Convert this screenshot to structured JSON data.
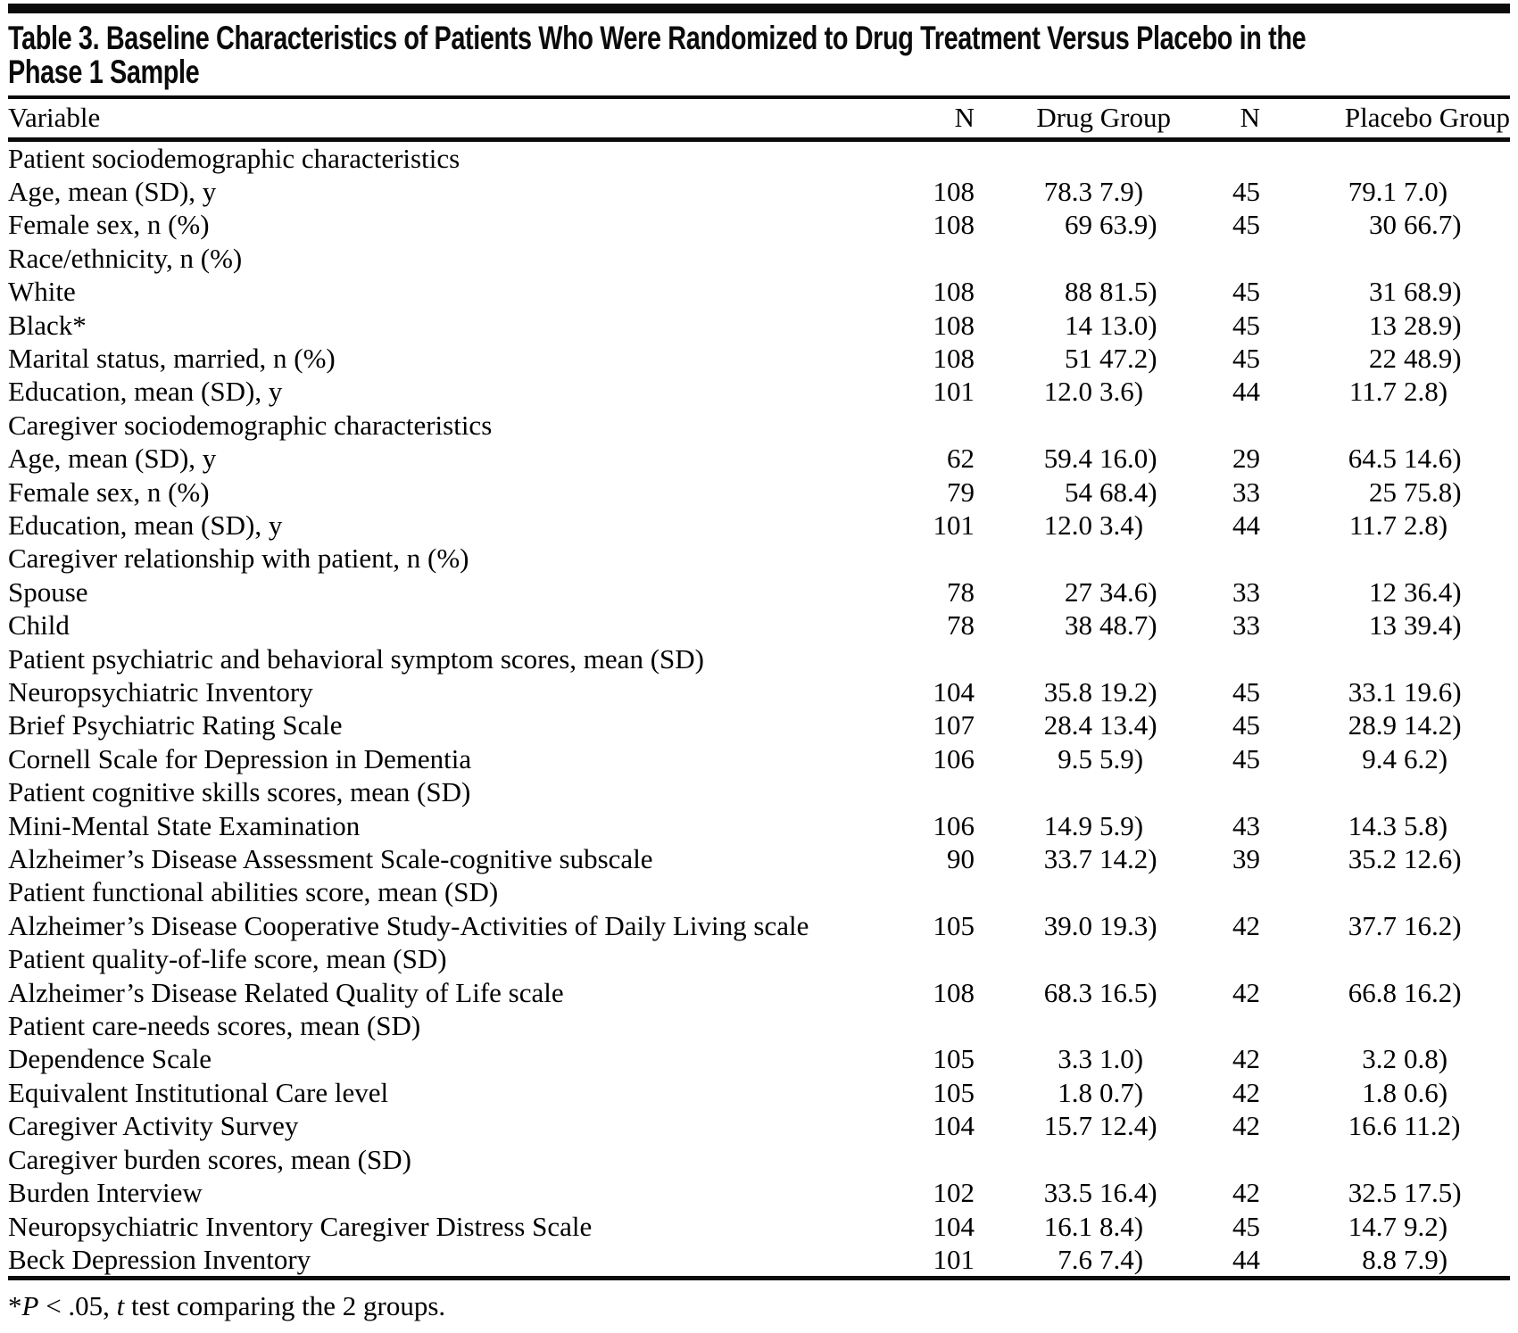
{
  "table": {
    "title_line1": "Table 3. Baseline Characteristics of Patients Who Were Randomized to Drug Treatment Versus Placebo in the",
    "title_line2": "Phase 1 Sample",
    "columns": [
      "Variable",
      "N",
      "Drug Group",
      "N",
      "Placebo Group"
    ],
    "rows": [
      {
        "label": "Patient sociodemographic characteristics",
        "indent": 0,
        "n1": "",
        "drug": "",
        "n2": "",
        "placebo": ""
      },
      {
        "label": "Age, mean (SD), y",
        "indent": 1,
        "n1": "108",
        "drug": "78.3 (7.9)",
        "n2": "45",
        "placebo": "79.1 (7.0)"
      },
      {
        "label": "Female sex, n (%)",
        "indent": 1,
        "n1": "108",
        "drug": "69 (63.9)",
        "n2": "45",
        "placebo": "30 (66.7)"
      },
      {
        "label": "Race/ethnicity, n (%)",
        "indent": 1,
        "n1": "",
        "drug": "",
        "n2": "",
        "placebo": ""
      },
      {
        "label": "White",
        "indent": 2,
        "n1": "108",
        "drug": "88 (81.5)",
        "n2": "45",
        "placebo": "31 (68.9)"
      },
      {
        "label": "Black*",
        "indent": 2,
        "n1": "108",
        "drug": "14 (13.0)",
        "n2": "45",
        "placebo": "13 (28.9)"
      },
      {
        "label": "Marital status, married, n (%)",
        "indent": 1,
        "n1": "108",
        "drug": "51 (47.2)",
        "n2": "45",
        "placebo": "22 (48.9)"
      },
      {
        "label": "Education, mean (SD), y",
        "indent": 1,
        "n1": "101",
        "drug": "12.0 (3.6)",
        "n2": "44",
        "placebo": "11.7 (2.8)"
      },
      {
        "label": "Caregiver sociodemographic characteristics",
        "indent": 0,
        "n1": "",
        "drug": "",
        "n2": "",
        "placebo": ""
      },
      {
        "label": "Age, mean (SD), y",
        "indent": 1,
        "n1": "62",
        "drug": "59.4 (16.0)",
        "n2": "29",
        "placebo": "64.5 (14.6)"
      },
      {
        "label": "Female sex, n (%)",
        "indent": 1,
        "n1": "79",
        "drug": "54 (68.4)",
        "n2": "33",
        "placebo": "25 (75.8)"
      },
      {
        "label": "Education, mean (SD), y",
        "indent": 1,
        "n1": "101",
        "drug": "12.0 (3.4)",
        "n2": "44",
        "placebo": "11.7 (2.8)"
      },
      {
        "label": "Caregiver relationship with patient, n (%)",
        "indent": 0,
        "n1": "",
        "drug": "",
        "n2": "",
        "placebo": ""
      },
      {
        "label": "Spouse",
        "indent": 1,
        "n1": "78",
        "drug": "27 (34.6)",
        "n2": "33",
        "placebo": "12 (36.4)"
      },
      {
        "label": "Child",
        "indent": 1,
        "n1": "78",
        "drug": "38 (48.7)",
        "n2": "33",
        "placebo": "13 (39.4)"
      },
      {
        "label": "Patient psychiatric and behavioral symptom scores, mean (SD)",
        "indent": 0,
        "n1": "",
        "drug": "",
        "n2": "",
        "placebo": ""
      },
      {
        "label": "Neuropsychiatric Inventory",
        "indent": 1,
        "n1": "104",
        "drug": "35.8 (19.2)",
        "n2": "45",
        "placebo": "33.1 (19.6)"
      },
      {
        "label": "Brief Psychiatric Rating Scale",
        "indent": 1,
        "n1": "107",
        "drug": "28.4 (13.4)",
        "n2": "45",
        "placebo": "28.9 (14.2)"
      },
      {
        "label": "Cornell Scale for Depression in Dementia",
        "indent": 1,
        "n1": "106",
        "drug": "9.5 (5.9)",
        "n2": "45",
        "placebo": "9.4 (6.2)"
      },
      {
        "label": "Patient cognitive skills scores, mean (SD)",
        "indent": 0,
        "n1": "",
        "drug": "",
        "n2": "",
        "placebo": ""
      },
      {
        "label": "Mini-Mental State Examination",
        "indent": 1,
        "n1": "106",
        "drug": "14.9 (5.9)",
        "n2": "43",
        "placebo": "14.3 (5.8)"
      },
      {
        "label": "Alzheimer’s Disease Assessment Scale-cognitive subscale",
        "indent": 1,
        "n1": "90",
        "drug": "33.7 (14.2)",
        "n2": "39",
        "placebo": "35.2 (12.6)"
      },
      {
        "label": "Patient functional abilities score, mean (SD)",
        "indent": 0,
        "n1": "",
        "drug": "",
        "n2": "",
        "placebo": ""
      },
      {
        "label": "Alzheimer’s Disease Cooperative Study-Activities of Daily Living scale",
        "indent": 1,
        "n1": "105",
        "drug": "39.0 (19.3)",
        "n2": "42",
        "placebo": "37.7 (16.2)"
      },
      {
        "label": "Patient quality-of-life score, mean (SD)",
        "indent": 0,
        "n1": "",
        "drug": "",
        "n2": "",
        "placebo": ""
      },
      {
        "label": "Alzheimer’s Disease Related Quality of Life scale",
        "indent": 1,
        "n1": "108",
        "drug": "68.3 (16.5)",
        "n2": "42",
        "placebo": "66.8 (16.2)"
      },
      {
        "label": "Patient care-needs scores, mean (SD)",
        "indent": 0,
        "n1": "",
        "drug": "",
        "n2": "",
        "placebo": ""
      },
      {
        "label": "Dependence Scale",
        "indent": 1,
        "n1": "105",
        "drug": "3.3 (1.0)",
        "n2": "42",
        "placebo": "3.2 (0.8)"
      },
      {
        "label": "Equivalent Institutional Care level",
        "indent": 1,
        "n1": "105",
        "drug": "1.8 (0.7)",
        "n2": "42",
        "placebo": "1.8 (0.6)"
      },
      {
        "label": "Caregiver Activity Survey",
        "indent": 1,
        "n1": "104",
        "drug": "15.7 (12.4)",
        "n2": "42",
        "placebo": "16.6 (11.2)"
      },
      {
        "label": "Caregiver burden scores, mean (SD)",
        "indent": 0,
        "n1": "",
        "drug": "",
        "n2": "",
        "placebo": ""
      },
      {
        "label": "Burden Interview",
        "indent": 1,
        "n1": "102",
        "drug": "33.5 (16.4)",
        "n2": "42",
        "placebo": "32.5 (17.5)"
      },
      {
        "label": "Neuropsychiatric Inventory Caregiver Distress Scale",
        "indent": 1,
        "n1": "104",
        "drug": "16.1 (8.4)",
        "n2": "45",
        "placebo": "14.7 (9.2)"
      },
      {
        "label": "Beck Depression Inventory",
        "indent": 1,
        "n1": "101",
        "drug": "7.6 (7.4)",
        "n2": "44",
        "placebo": "8.8 (7.9)"
      }
    ],
    "footnote": {
      "star": "*",
      "p": "P",
      "mid": " < .05, ",
      "t": "t",
      "end": " test comparing the 2 groups."
    }
  }
}
